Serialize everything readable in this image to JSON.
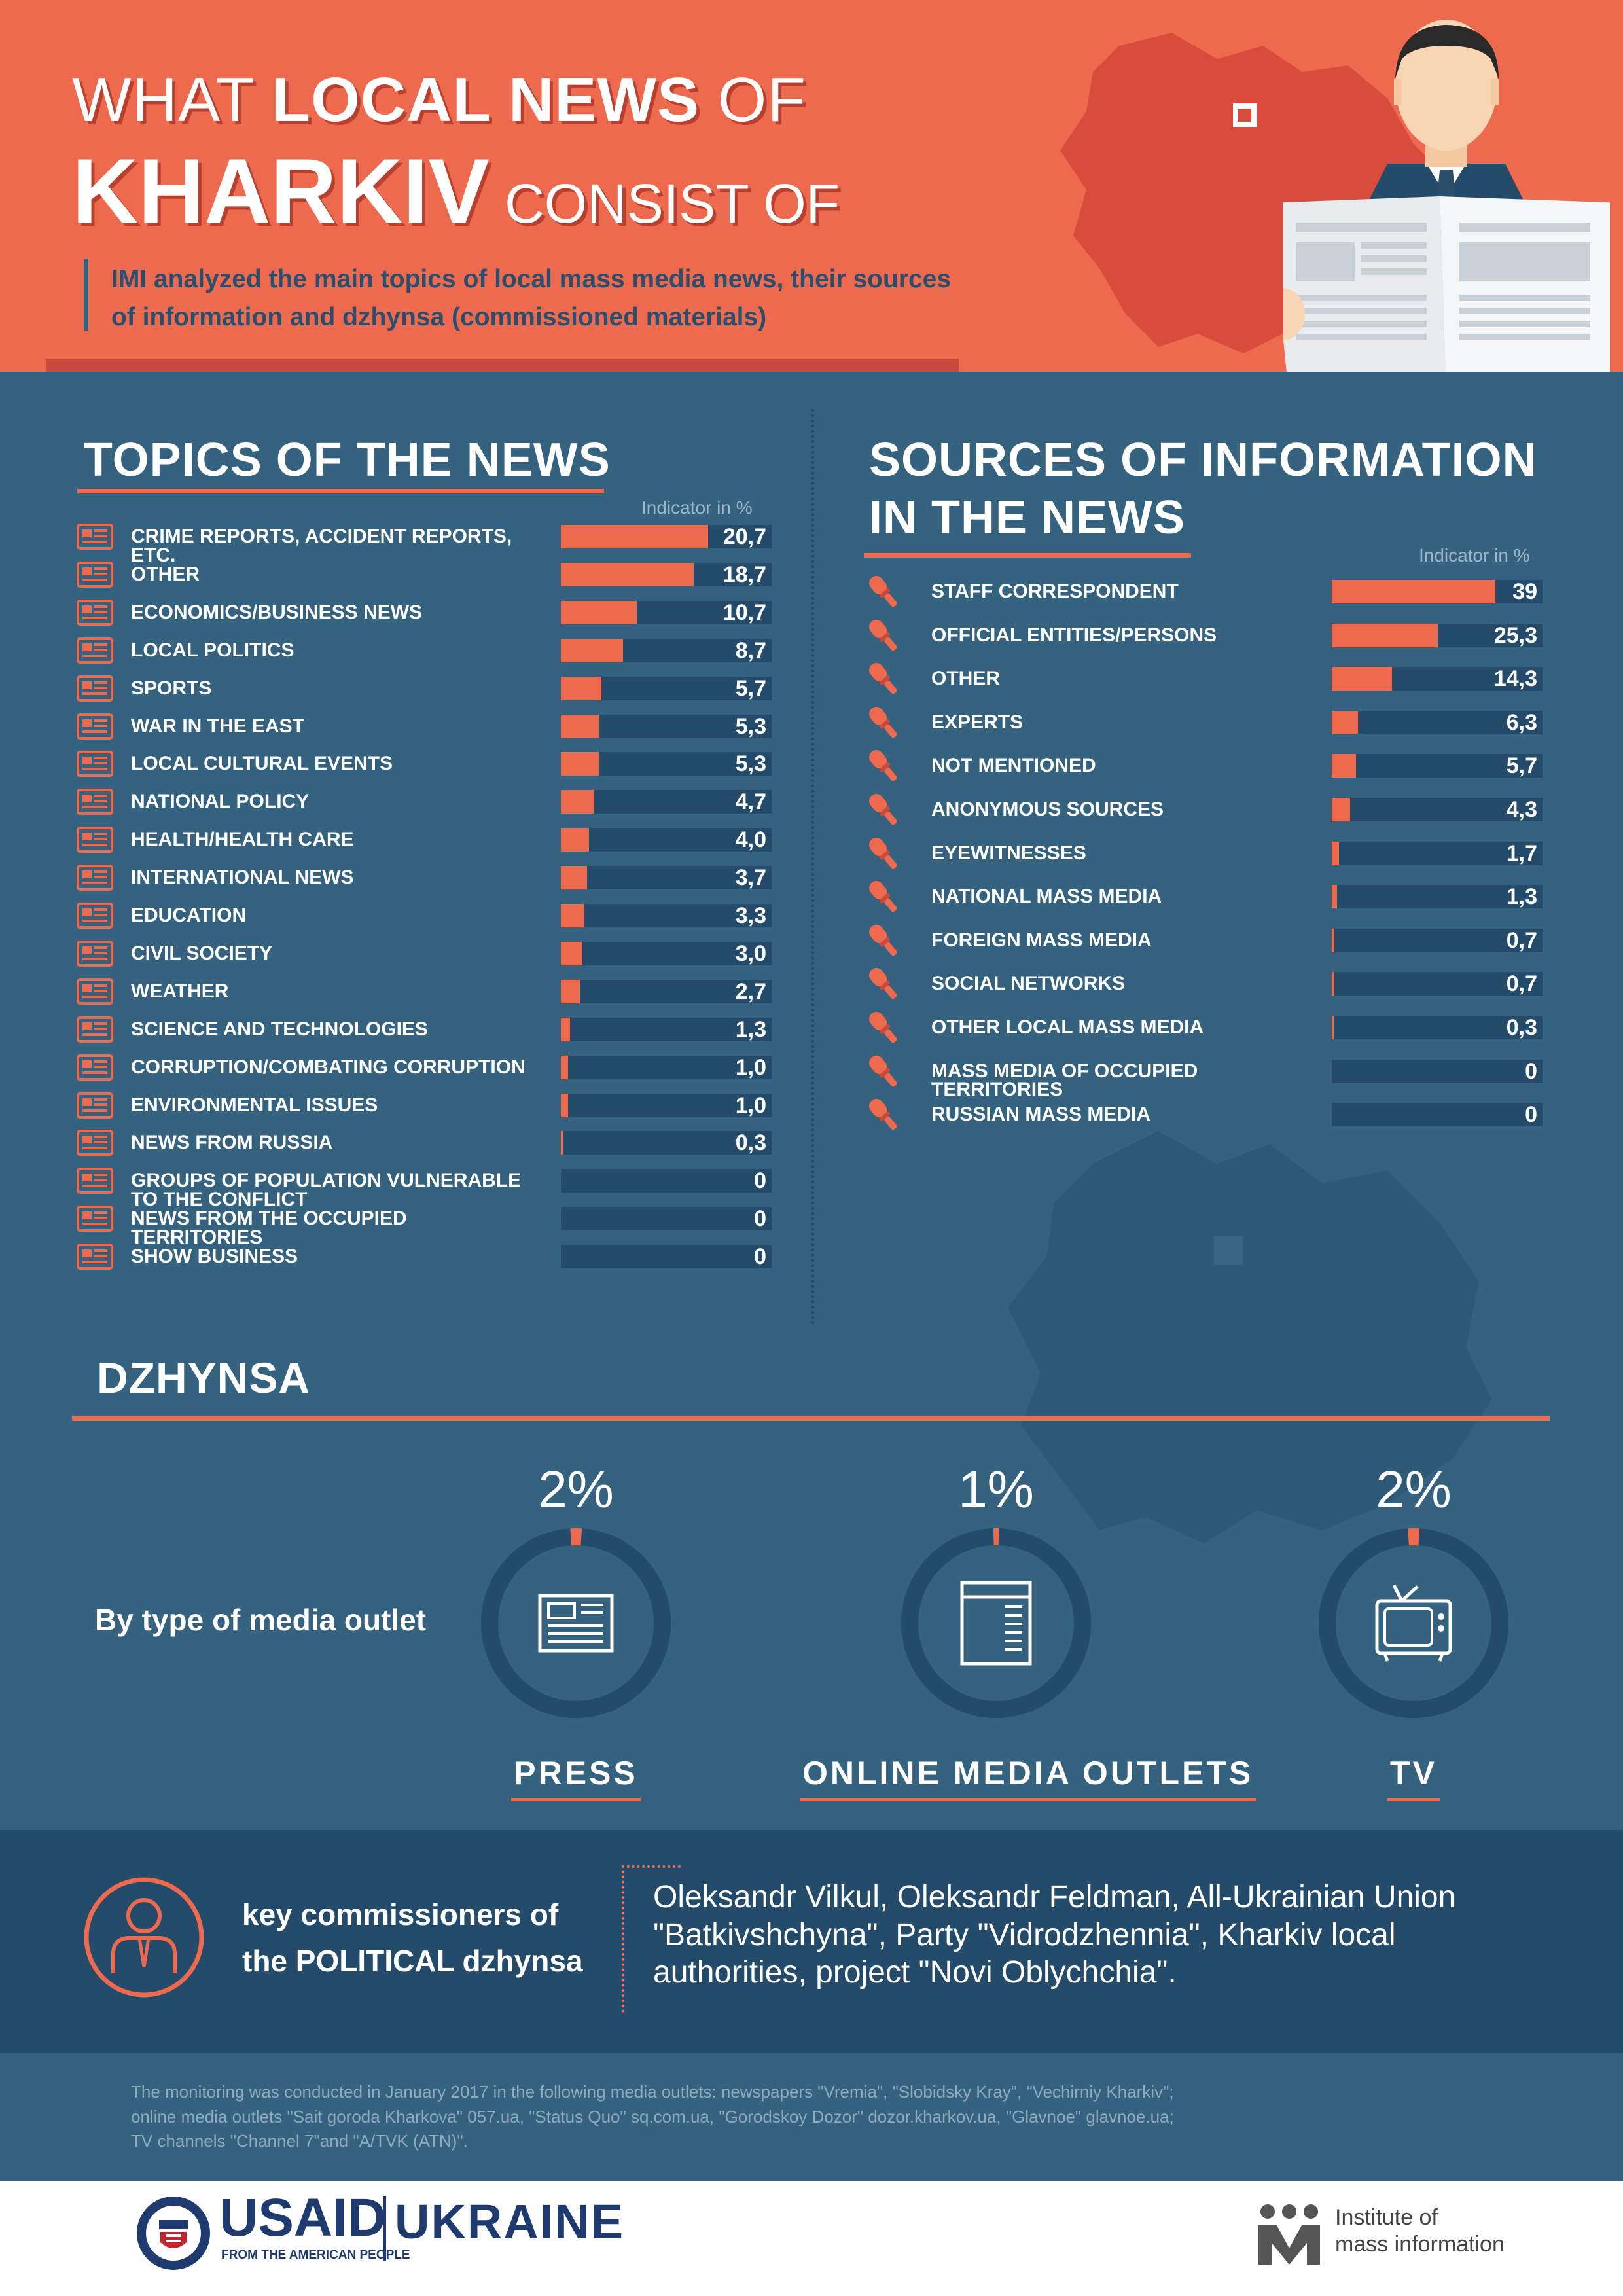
{
  "header": {
    "title_part1": "WHAT ",
    "title_bold1": "LOCAL NEWS",
    "title_part2": " OF",
    "title_bold2": "KHARKIV",
    "title_part3": " CONSIST OF",
    "description": "IMI analyzed the main topics of local mass media news, their sources of information and dzhynsa (commissioned materials)"
  },
  "topics": {
    "title": "TOPICS OF THE NEWS",
    "indicator": "Indicator in %"
  },
  "sources": {
    "title_line1": "SOURCES OF INFORMATION",
    "title_line2": "IN THE NEWS",
    "indicator": "Indicator in %"
  },
  "dzhynsa": {
    "title": "DZHYNSA",
    "by_type_label": "By type of media outlet"
  },
  "commissioners": {
    "label_line1": "key commissioners of",
    "label_line2": "the POLITICAL dzhynsa",
    "text": "Oleksandr Vilkul, Oleksandr Feldman, All-Ukrainian Union \"Batkivshchyna\", Party \"Vidrodzhennia\", Kharkiv local authorities, project \"Novi Oblychchia\"."
  },
  "note": {
    "line1": "The monitoring was conducted in January 2017 in the following media outlets: newspapers \"Vremia\", \"Slobidsky Kray\", \"Vechirniy Kharkiv\";",
    "line2": "online media outlets \"Sait goroda Kharkova\" 057.ua, \"Status Quo\" sq.com.ua, \"Gorodskoy Dozor\" dozor.kharkov.ua, \"Glavnoe\" glavnoe.ua;",
    "line3": "TV channels \"Channel 7\"and \"A/TVK (ATN)\"."
  },
  "logos": {
    "usaid": "USAID",
    "usaid_sub": "FROM THE AMERICAN PEOPLE",
    "ukraine": "UKRAINE",
    "imi_line1": "Institute of",
    "imi_line2": "mass information"
  },
  "colors": {
    "accent": "#ee6a4f",
    "background": "#35627f",
    "dark": "#244b69"
  },
  "chart_data": [
    {
      "type": "bar",
      "title": "TOPICS OF THE NEWS",
      "ylabel": "Indicator in %",
      "xlim": [
        0,
        20.7
      ],
      "categories": [
        "CRIME REPORTS, ACCIDENT REPORTS, ETC.",
        "OTHER",
        "ECONOMICS/BUSINESS NEWS",
        "LOCAL POLITICS",
        "SPORTS",
        "WAR IN THE EAST",
        "LOCAL CULTURAL EVENTS",
        "NATIONAL POLICY",
        "HEALTH/HEALTH CARE",
        "INTERNATIONAL NEWS",
        "EDUCATION",
        "CIVIL SOCIETY",
        "WEATHER",
        "SCIENCE AND TECHNOLOGIES",
        "CORRUPTION/COMBATING CORRUPTION",
        "ENVIRONMENTAL ISSUES",
        "NEWS FROM RUSSIA",
        "GROUPS OF POPULATION VULNERABLE TO THE CONFLICT",
        "NEWS FROM THE OCCUPIED TERRITORIES",
        "SHOW BUSINESS"
      ],
      "values": [
        20.7,
        18.7,
        10.7,
        8.7,
        5.7,
        5.3,
        5.3,
        4.7,
        4.0,
        3.7,
        3.3,
        3.0,
        2.7,
        1.3,
        1.0,
        1.0,
        0.3,
        0,
        0,
        0
      ],
      "labels": [
        "20,7",
        "18,7",
        "10,7",
        "8,7",
        "5,7",
        "5,3",
        "5,3",
        "4,7",
        "4,0",
        "3,7",
        "3,3",
        "3,0",
        "2,7",
        "1,3",
        "1,0",
        "1,0",
        "0,3",
        "0",
        "0",
        "0"
      ]
    },
    {
      "type": "bar",
      "title": "SOURCES OF INFORMATION IN THE NEWS",
      "ylabel": "Indicator in %",
      "xlim": [
        0,
        39
      ],
      "categories": [
        "STAFF CORRESPONDENT",
        "OFFICIAL ENTITIES/PERSONS",
        "OTHER",
        "EXPERTS",
        "NOT MENTIONED",
        "ANONYMOUS SOURCES",
        "EYEWITNESSES",
        "NATIONAL MASS MEDIA",
        "FOREIGN MASS MEDIA",
        "SOCIAL NETWORKS",
        "OTHER LOCAL MASS MEDIA",
        "MASS MEDIA OF OCCUPIED TERRITORIES",
        "RUSSIAN MASS MEDIA"
      ],
      "values": [
        39,
        25.3,
        14.3,
        6.3,
        5.7,
        4.3,
        1.7,
        1.3,
        0.7,
        0.7,
        0.3,
        0,
        0
      ],
      "labels": [
        "39",
        "25,3",
        "14,3",
        "6,3",
        "5,7",
        "4,3",
        "1,7",
        "1,3",
        "0,7",
        "0,7",
        "0,3",
        "0",
        "0"
      ]
    },
    {
      "type": "pie",
      "title": "DZHYNSA",
      "categories": [
        "PRESS",
        "ONLINE MEDIA OUTLETS",
        "TV"
      ],
      "values": [
        2,
        1,
        2
      ],
      "labels": [
        "2%",
        "1%",
        "2%"
      ],
      "icons": [
        "newspaper-icon",
        "browser-window-icon",
        "tv-icon"
      ]
    }
  ]
}
